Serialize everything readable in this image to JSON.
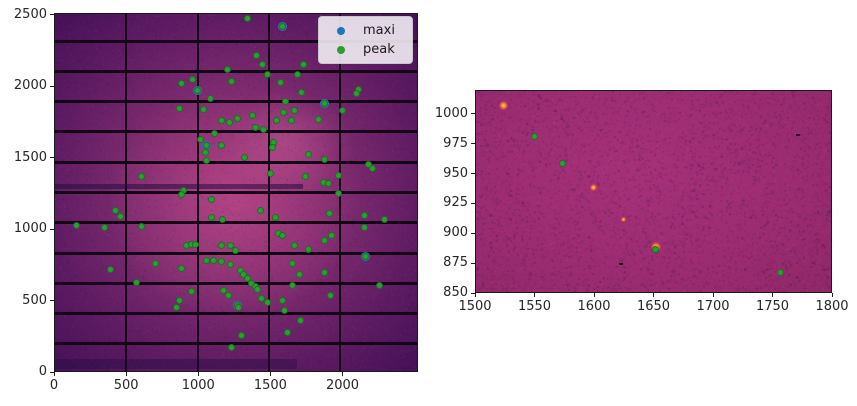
{
  "figure": {
    "background": "#ffffff"
  },
  "colors": {
    "peak_green": "#2b9e33",
    "maxi_blue": "#1f77b4",
    "hot_orange": "#f07828",
    "hot_orange_core": "#ffcf8a",
    "gap_line": "#150617",
    "tick_text": "#262626"
  },
  "chart_data": [
    {
      "id": "detector_overview",
      "type": "scatter",
      "description": "full detector diffraction image (magma colormap) with detected spots overlaid",
      "xlim": [
        0,
        2523
      ],
      "ylim": [
        0,
        2513
      ],
      "xticks": [
        0,
        500,
        1000,
        1500,
        2000
      ],
      "yticks": [
        0,
        500,
        1000,
        1500,
        2000,
        2500
      ],
      "legend": {
        "position": "upper right",
        "entries": [
          {
            "label": "maxi",
            "color": "#1f77b4"
          },
          {
            "label": "peak",
            "color": "#2b9e33"
          }
        ]
      },
      "detector_module_gaps": {
        "vertical_x": [
          494,
          988,
          1482,
          1976
        ],
        "horizontal_y": [
          204,
          416,
          628,
          840,
          1052,
          1264,
          1476,
          1688,
          1900,
          2112,
          2324
        ]
      },
      "artifact_bands": [
        {
          "y_range": [
            1286,
            1326
          ],
          "x_range": [
            0,
            1720
          ]
        },
        {
          "y_range": [
            28,
            98
          ],
          "x_range": [
            0,
            1680
          ]
        }
      ],
      "series": [
        {
          "name": "maxi",
          "marker_color": "#1f77b4",
          "points": [
            [
              1575,
              2429
            ],
            [
              987,
              1981
            ],
            [
              1869,
              1890
            ],
            [
              1050,
              1596
            ],
            [
              1267,
              476
            ],
            [
              2149,
              819
            ]
          ]
        },
        {
          "name": "peak",
          "marker_color": "#2b9e33",
          "points": [
            [
              875,
              2030
            ],
            [
              952,
              2058
            ],
            [
              987,
              1981
            ],
            [
              1078,
              1925
            ],
            [
              1197,
              2128
            ],
            [
              1225,
              2044
            ],
            [
              861,
              1855
            ],
            [
              1029,
              1848
            ],
            [
              1155,
              1771
            ],
            [
              1211,
              1757
            ],
            [
              1106,
              1680
            ],
            [
              1008,
              1638
            ],
            [
              1050,
              1596
            ],
            [
              1155,
              1596
            ],
            [
              1043,
              1547
            ],
            [
              1050,
              1491
            ],
            [
              602,
              1379
            ],
            [
              889,
              1281
            ],
            [
              1337,
              2485
            ],
            [
              1575,
              2429
            ],
            [
              1400,
              2226
            ],
            [
              1435,
              2163
            ],
            [
              1722,
              2163
            ],
            [
              1470,
              2093
            ],
            [
              1680,
              2093
            ],
            [
              1561,
              2037
            ],
            [
              1708,
              1967
            ],
            [
              2107,
              1988
            ],
            [
              2093,
              1960
            ],
            [
              1596,
              1904
            ],
            [
              1869,
              1890
            ],
            [
              1582,
              1827
            ],
            [
              1659,
              1841
            ],
            [
              1995,
              1841
            ],
            [
              1267,
              1785
            ],
            [
              1372,
              1806
            ],
            [
              1533,
              1771
            ],
            [
              1638,
              1771
            ],
            [
              1827,
              1778
            ],
            [
              1393,
              1722
            ],
            [
              1442,
              1708
            ],
            [
              1512,
              1617
            ],
            [
              1505,
              1582
            ],
            [
              1757,
              1533
            ],
            [
              1316,
              1512
            ],
            [
              1869,
              1498
            ],
            [
              2170,
              1463
            ],
            [
              2198,
              1435
            ],
            [
              1491,
              1400
            ],
            [
              1736,
              1379
            ],
            [
              1967,
              1386
            ],
            [
              1862,
              1337
            ],
            [
              1897,
              1330
            ],
            [
              875,
              1253
            ],
            [
              420,
              1141
            ],
            [
              455,
              1099
            ],
            [
              1085,
              1218
            ],
            [
              1085,
              1092
            ],
            [
              1162,
              1078
            ],
            [
              147,
              1036
            ],
            [
              343,
              1022
            ],
            [
              602,
              1029
            ],
            [
              910,
              896
            ],
            [
              945,
              903
            ],
            [
              973,
              903
            ],
            [
              1155,
              896
            ],
            [
              1218,
              896
            ],
            [
              700,
              770
            ],
            [
              875,
              735
            ],
            [
              1050,
              791
            ],
            [
              1099,
              791
            ],
            [
              1155,
              784
            ],
            [
              1218,
              763
            ],
            [
              385,
              728
            ],
            [
              567,
              637
            ],
            [
              945,
              574
            ],
            [
              1169,
              581
            ],
            [
              1204,
              546
            ],
            [
              861,
              511
            ],
            [
              840,
              462
            ],
            [
              1225,
              182
            ],
            [
              1967,
              1260
            ],
            [
              1421,
              1141
            ],
            [
              1904,
              1120
            ],
            [
              1526,
              1092
            ],
            [
              2142,
              1106
            ],
            [
              2282,
              1078
            ],
            [
              2142,
              1022
            ],
            [
              1547,
              980
            ],
            [
              1575,
              966
            ],
            [
              1918,
              966
            ],
            [
              1869,
              931
            ],
            [
              1659,
              896
            ],
            [
              1757,
              868
            ],
            [
              1253,
              861
            ],
            [
              2149,
              819
            ],
            [
              1645,
              770
            ],
            [
              1288,
              721
            ],
            [
              1309,
              693
            ],
            [
              1337,
              665
            ],
            [
              1694,
              693
            ],
            [
              1869,
              707
            ],
            [
              1365,
              630
            ],
            [
              1393,
              609
            ],
            [
              1407,
              588
            ],
            [
              1645,
              616
            ],
            [
              2247,
              616
            ],
            [
              1428,
              525
            ],
            [
              1470,
              497
            ],
            [
              1575,
              511
            ],
            [
              1267,
              476
            ],
            [
              1274,
              462
            ],
            [
              1911,
              546
            ],
            [
              1589,
              441
            ],
            [
              1701,
              371
            ],
            [
              1610,
              287
            ],
            [
              1295,
              266
            ]
          ]
        }
      ]
    },
    {
      "id": "detector_zoom",
      "type": "scatter",
      "description": "zoomed detector region with peak markers and hot pixels",
      "xlim": [
        1500,
        1800
      ],
      "ylim": [
        850,
        1020
      ],
      "xticks": [
        1500,
        1550,
        1600,
        1650,
        1700,
        1750,
        1800
      ],
      "yticks": [
        850,
        875,
        900,
        925,
        950,
        975,
        1000
      ],
      "green_peaks": [
        [
          1549,
          982
        ],
        [
          1573,
          959
        ],
        [
          1651,
          887
        ],
        [
          1756,
          868
        ]
      ],
      "hot_pixels_orange": [
        [
          1523,
          1008
        ],
        [
          1599,
          939
        ],
        [
          1624,
          912
        ],
        [
          1651,
          889
        ]
      ],
      "dark_pixels": [
        [
          1771,
          983
        ],
        [
          1622,
          875
        ]
      ]
    }
  ]
}
